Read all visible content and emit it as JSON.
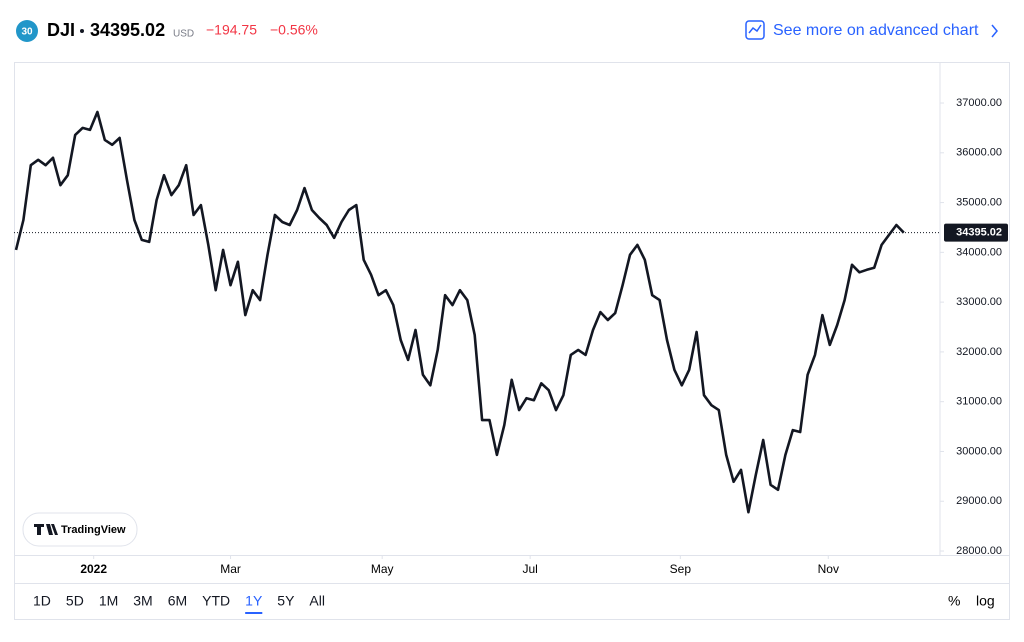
{
  "header": {
    "badge": "30",
    "symbol": "DJI",
    "price": "34395.02",
    "currency": "USD",
    "change": "−194.75",
    "change_pct": "−0.56%",
    "advanced_link": "See more on advanced chart"
  },
  "chart_data": {
    "type": "line",
    "color": "#131722",
    "last": 34395.02,
    "values": [
      34050,
      34650,
      35750,
      35860,
      35750,
      35900,
      35350,
      35550,
      36360,
      36500,
      36460,
      36820,
      36260,
      36160,
      36300,
      35450,
      34650,
      34250,
      34210,
      35050,
      35550,
      35150,
      35350,
      35750,
      34750,
      34950,
      34150,
      33240,
      34050,
      33340,
      33810,
      32740,
      33240,
      33040,
      33950,
      34750,
      34610,
      34550,
      34850,
      35290,
      34850,
      34690,
      34550,
      34290,
      34610,
      34850,
      34950,
      33850,
      33550,
      33140,
      33240,
      32940,
      32240,
      31840,
      32440,
      31540,
      31330,
      32040,
      33140,
      32940,
      33240,
      33040,
      32340,
      30630,
      30630,
      29930,
      30530,
      31440,
      30830,
      31070,
      31030,
      31370,
      31230,
      30830,
      31130,
      31940,
      32040,
      31940,
      32440,
      32800,
      32640,
      32780,
      33340,
      33950,
      34150,
      33850,
      33140,
      33040,
      32240,
      31640,
      31330,
      31640,
      32400,
      31130,
      30930,
      30830,
      29930,
      29390,
      29630,
      28780,
      29530,
      30230,
      29330,
      29230,
      29930,
      30430,
      30390,
      31540,
      31940,
      32740,
      32140,
      32540,
      33040,
      33750,
      33600,
      33650,
      33690,
      34150,
      34350,
      34550,
      34395.02
    ],
    "xlim": [
      0,
      124.9
    ],
    "xticks": [
      {
        "value": 10.5,
        "label": "2022"
      },
      {
        "value": 29,
        "label": "Mar"
      },
      {
        "value": 49.5,
        "label": "May"
      },
      {
        "value": 69.5,
        "label": "Jul"
      },
      {
        "value": 89.8,
        "label": "Sep"
      },
      {
        "value": 109.8,
        "label": "Nov"
      }
    ],
    "ylim": [
      27920,
      37824
    ],
    "yticks": [
      {
        "value": 28000,
        "label": "28000.00"
      },
      {
        "value": 29000,
        "label": "29000.00"
      },
      {
        "value": 30000,
        "label": "30000.00"
      },
      {
        "value": 31000,
        "label": "31000.00"
      },
      {
        "value": 32000,
        "label": "32000.00"
      },
      {
        "value": 33000,
        "label": "33000.00"
      },
      {
        "value": 34000,
        "label": "34000.00"
      },
      {
        "value": 35000,
        "label": "35000.00"
      },
      {
        "value": 36000,
        "label": "36000.00"
      },
      {
        "value": 37000,
        "label": "37000.00"
      }
    ]
  },
  "watermark": "TradingView",
  "ranges": [
    "1D",
    "5D",
    "1M",
    "3M",
    "6M",
    "YTD",
    "1Y",
    "5Y",
    "All"
  ],
  "active_range": "1Y",
  "scale_options": [
    "%",
    "log"
  ]
}
